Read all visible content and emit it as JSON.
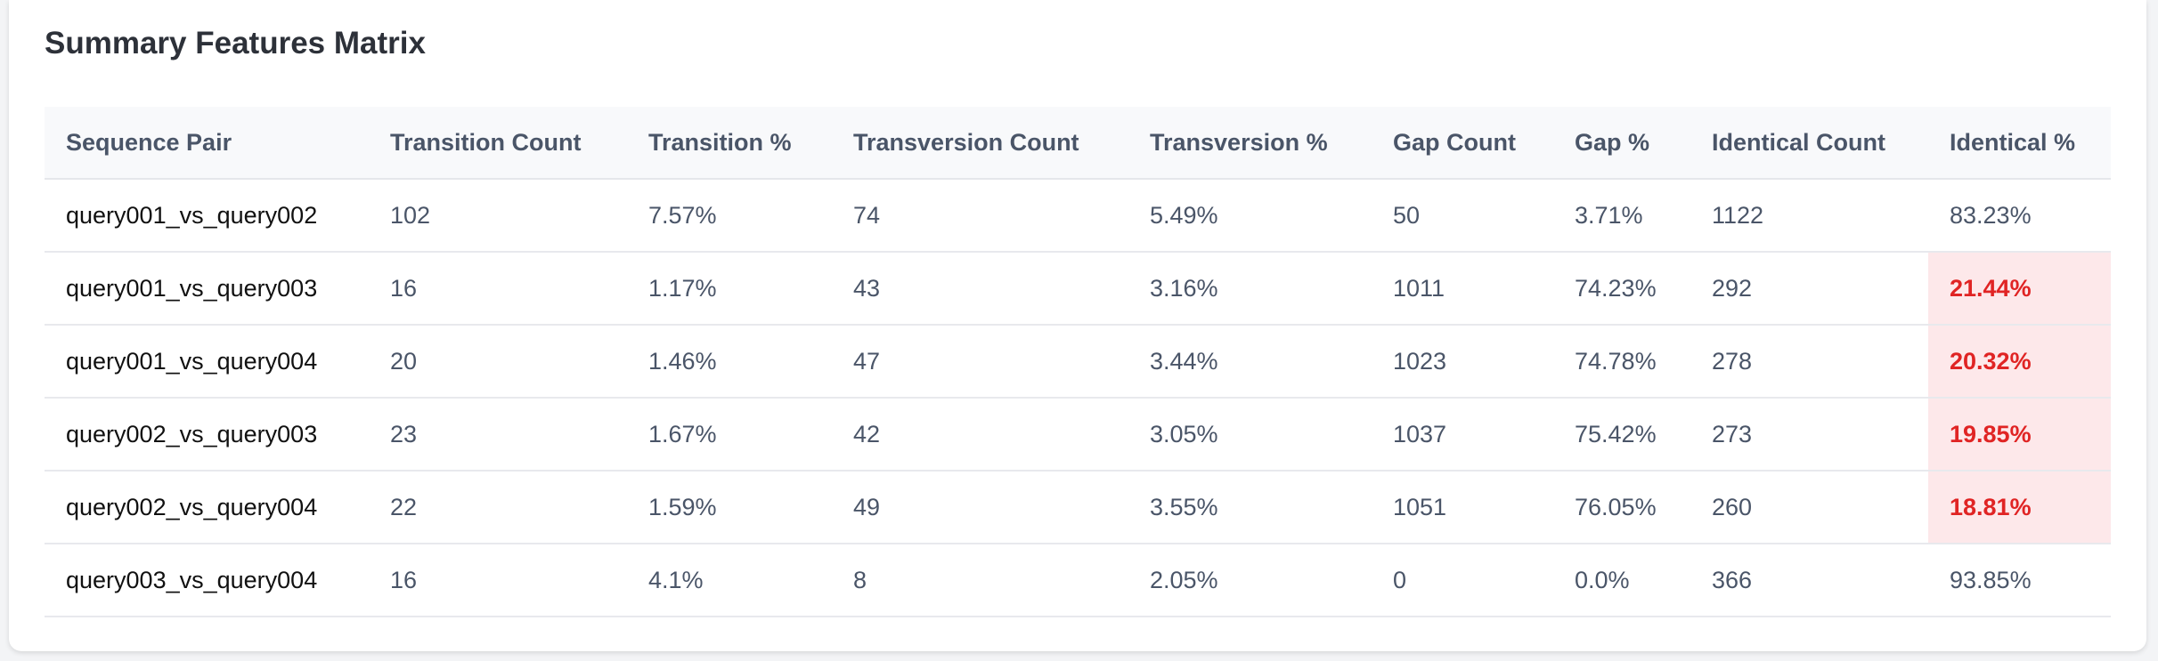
{
  "title": "Summary Features Matrix",
  "columns": [
    "Sequence Pair",
    "Transition Count",
    "Transition %",
    "Transversion Count",
    "Transversion %",
    "Gap Count",
    "Gap %",
    "Identical Count",
    "Identical %"
  ],
  "rows": [
    {
      "pair": "query001_vs_query002",
      "transition_count": "102",
      "transition_pct": "7.57%",
      "transversion_count": "74",
      "transversion_pct": "5.49%",
      "gap_count": "50",
      "gap_pct": "3.71%",
      "identical_count": "1122",
      "identical_pct": "83.23%",
      "low_identity": false
    },
    {
      "pair": "query001_vs_query003",
      "transition_count": "16",
      "transition_pct": "1.17%",
      "transversion_count": "43",
      "transversion_pct": "3.16%",
      "gap_count": "1011",
      "gap_pct": "74.23%",
      "identical_count": "292",
      "identical_pct": "21.44%",
      "low_identity": true
    },
    {
      "pair": "query001_vs_query004",
      "transition_count": "20",
      "transition_pct": "1.46%",
      "transversion_count": "47",
      "transversion_pct": "3.44%",
      "gap_count": "1023",
      "gap_pct": "74.78%",
      "identical_count": "278",
      "identical_pct": "20.32%",
      "low_identity": true
    },
    {
      "pair": "query002_vs_query003",
      "transition_count": "23",
      "transition_pct": "1.67%",
      "transversion_count": "42",
      "transversion_pct": "3.05%",
      "gap_count": "1037",
      "gap_pct": "75.42%",
      "identical_count": "273",
      "identical_pct": "19.85%",
      "low_identity": true
    },
    {
      "pair": "query002_vs_query004",
      "transition_count": "22",
      "transition_pct": "1.59%",
      "transversion_count": "49",
      "transversion_pct": "3.55%",
      "gap_count": "1051",
      "gap_pct": "76.05%",
      "identical_count": "260",
      "identical_pct": "18.81%",
      "low_identity": true
    },
    {
      "pair": "query003_vs_query004",
      "transition_count": "16",
      "transition_pct": "4.1%",
      "transversion_count": "8",
      "transversion_pct": "2.05%",
      "gap_count": "0",
      "gap_pct": "0.0%",
      "identical_count": "366",
      "identical_pct": "93.85%",
      "low_identity": false
    }
  ],
  "colors": {
    "highlight_text": "#e02424",
    "highlight_background": "#fde8ea",
    "header_background": "#f8f9fb"
  }
}
